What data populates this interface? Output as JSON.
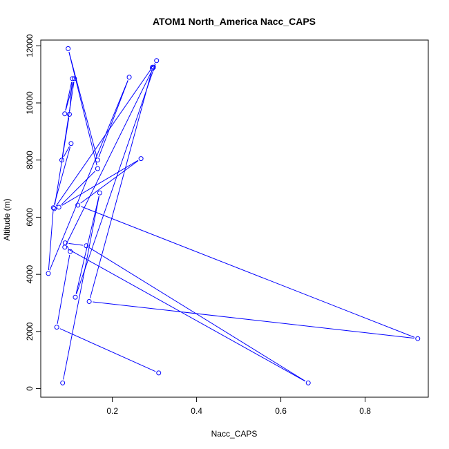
{
  "chart_data": {
    "type": "line",
    "title": "ATOM1 North_America Nacc_CAPS",
    "xlabel": "Nacc_CAPS",
    "ylabel": "Altitude (m)",
    "xlim": [
      0.03,
      0.95
    ],
    "ylim": [
      -300,
      12200
    ],
    "xticks": [
      0.2,
      0.4,
      0.6,
      0.8
    ],
    "yticks": [
      0,
      2000,
      4000,
      6000,
      8000,
      10000,
      12000
    ],
    "xtick_labels": [
      "0.2",
      "0.4",
      "0.6",
      "0.8"
    ],
    "ytick_labels": [
      "0",
      "2000",
      "4000",
      "6000",
      "8000",
      "10000",
      "12000"
    ],
    "series_color": "#0000ff",
    "markers": "open-circle",
    "grid": false,
    "series": [
      {
        "x": [
          0.31,
          0.068,
          0.1,
          0.088,
          0.138,
          0.665,
          0.087,
          0.298,
          0.295,
          0.145,
          0.925,
          0.118,
          0.268,
          0.073,
          0.165,
          0.095,
          0.165,
          0.24,
          0.048,
          0.06,
          0.102,
          0.08,
          0.11,
          0.087,
          0.105,
          0.098,
          0.062,
          0.295,
          0.305,
          0.112,
          0.17,
          0.082
        ],
        "y": [
          550,
          2150,
          4800,
          5100,
          5000,
          200,
          4950,
          11250,
          11200,
          3050,
          1750,
          6420,
          8050,
          6350,
          7700,
          11900,
          8000,
          10900,
          4030,
          6330,
          8580,
          8000,
          10850,
          9620,
          10850,
          9600,
          6300,
          11250,
          11480,
          3200,
          6850,
          200
        ]
      }
    ]
  }
}
